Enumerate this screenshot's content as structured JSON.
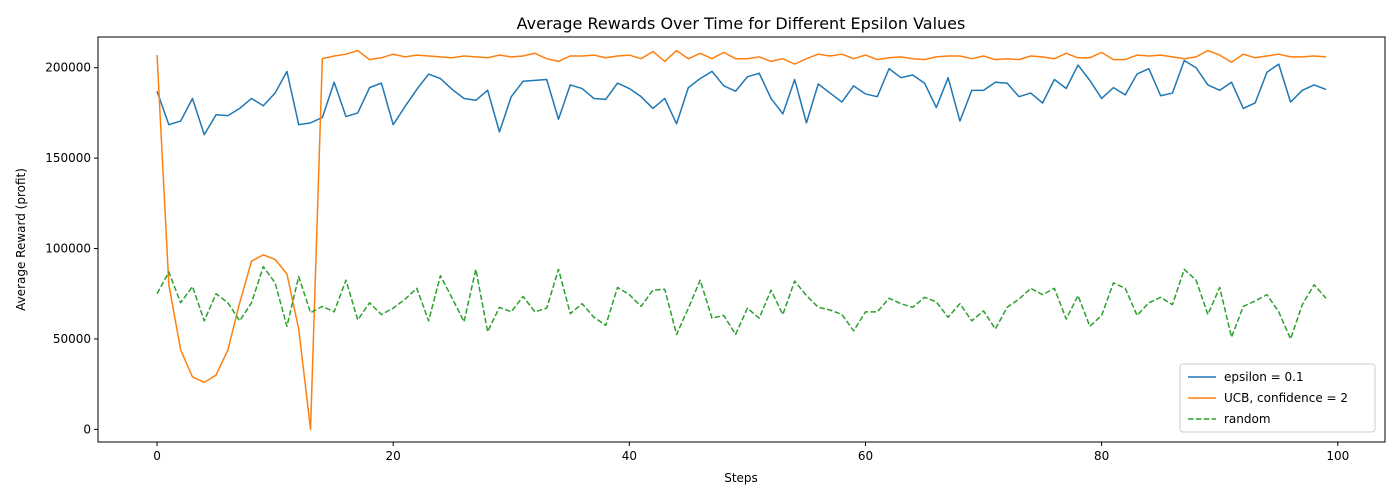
{
  "chart_data": {
    "type": "line",
    "title": "Average Rewards Over Time for Different Epsilon Values",
    "xlabel": "Steps",
    "ylabel": "Average Reward (profit)",
    "xlim": [
      -5,
      104
    ],
    "ylim": [
      -7000,
      217000
    ],
    "xticks": [
      0,
      20,
      40,
      60,
      80,
      100
    ],
    "yticks": [
      0,
      50000,
      100000,
      150000,
      200000
    ],
    "grid": false,
    "legend_position": "lower-right",
    "x": [
      0,
      1,
      2,
      3,
      4,
      5,
      6,
      7,
      8,
      9,
      10,
      11,
      12,
      13,
      14,
      15,
      16,
      17,
      18,
      19,
      20,
      21,
      22,
      23,
      24,
      25,
      26,
      27,
      28,
      29,
      30,
      31,
      32,
      33,
      34,
      35,
      36,
      37,
      38,
      39,
      40,
      41,
      42,
      43,
      44,
      45,
      46,
      47,
      48,
      49,
      50,
      51,
      52,
      53,
      54,
      55,
      56,
      57,
      58,
      59,
      60,
      61,
      62,
      63,
      64,
      65,
      66,
      67,
      68,
      69,
      70,
      71,
      72,
      73,
      74,
      75,
      76,
      77,
      78,
      79,
      80,
      81,
      82,
      83,
      84,
      85,
      86,
      87,
      88,
      89,
      90,
      91,
      92,
      93,
      94,
      95,
      96,
      97,
      98,
      99
    ],
    "series": [
      {
        "name": "epsilon = 0.1",
        "color": "#1f77b4",
        "dash": "solid",
        "values": [
          187000,
          168500,
          170500,
          183000,
          163000,
          174000,
          173500,
          177500,
          183000,
          179000,
          186000,
          198000,
          168500,
          169500,
          172500,
          192000,
          173000,
          175000,
          189000,
          191500,
          168500,
          178500,
          188000,
          196500,
          194000,
          188000,
          183000,
          182000,
          187500,
          164500,
          184000,
          192500,
          193000,
          193500,
          171500,
          190500,
          188500,
          183000,
          182500,
          191500,
          188500,
          184000,
          177500,
          183000,
          169000,
          189000,
          194000,
          198000,
          190000,
          187000,
          195000,
          197000,
          183000,
          174500,
          193500,
          169500,
          191000,
          186000,
          181000,
          190000,
          185500,
          184000,
          199500,
          194500,
          196000,
          191500,
          178000,
          194500,
          170500,
          187500,
          187500,
          192000,
          191500,
          184000,
          186000,
          180500,
          193500,
          188500,
          201500,
          193000,
          183000,
          189000,
          185000,
          196500,
          199500,
          184500,
          186000,
          204000,
          200000,
          190500,
          187500,
          192000,
          177500,
          180500,
          197500,
          202000,
          181000,
          187500,
          190500,
          188000
        ]
      },
      {
        "name": "UCB, confidence = 2",
        "color": "#ff7f0e",
        "dash": "solid",
        "values": [
          207000,
          80000,
          44000,
          29000,
          26000,
          30000,
          44000,
          70000,
          93000,
          96500,
          94000,
          86000,
          55500,
          0,
          205000,
          206500,
          207500,
          209500,
          204500,
          205500,
          207500,
          206000,
          207000,
          206500,
          206000,
          205500,
          206500,
          206000,
          205500,
          207000,
          206000,
          206500,
          208000,
          205000,
          203500,
          206500,
          206500,
          207000,
          205500,
          206500,
          207000,
          205000,
          209000,
          203500,
          209500,
          205000,
          208000,
          205000,
          208500,
          205000,
          205000,
          206000,
          203500,
          205000,
          202000,
          205000,
          207500,
          206500,
          207500,
          205000,
          207000,
          204500,
          205500,
          206000,
          205000,
          204500,
          206000,
          206500,
          206500,
          205000,
          206500,
          204500,
          205000,
          204500,
          206500,
          206000,
          205000,
          208000,
          205500,
          205500,
          208500,
          204500,
          204500,
          207000,
          206500,
          207000,
          206000,
          205000,
          206000,
          209500,
          207000,
          203000,
          207500,
          205500,
          206500,
          207500,
          206000,
          206000,
          206500,
          206000
        ]
      },
      {
        "name": "random",
        "color": "#2ca02c",
        "dash": "dashed",
        "values": [
          75000,
          87000,
          70000,
          79000,
          60000,
          75000,
          70000,
          60000,
          70000,
          90000,
          81000,
          57000,
          84500,
          64500,
          68000,
          65000,
          82500,
          60500,
          70000,
          63500,
          67000,
          72000,
          78000,
          60000,
          85000,
          72500,
          59500,
          88500,
          54000,
          67500,
          65000,
          73500,
          65000,
          67000,
          88500,
          64000,
          69500,
          62000,
          57500,
          78500,
          74500,
          68000,
          77000,
          77500,
          52500,
          67000,
          82500,
          61500,
          63000,
          52500,
          67000,
          61500,
          77000,
          63500,
          82000,
          74000,
          67500,
          66000,
          63500,
          54500,
          65000,
          65000,
          72500,
          69500,
          67500,
          73000,
          70500,
          62000,
          69500,
          60000,
          65500,
          55500,
          67500,
          72000,
          78000,
          74500,
          78000,
          61000,
          74000,
          57000,
          63000,
          81000,
          78000,
          63000,
          70000,
          73000,
          69000,
          88500,
          82500,
          63500,
          78500,
          51000,
          68000,
          71000,
          74500,
          65000,
          50000,
          69000,
          80000,
          72500
        ]
      }
    ]
  }
}
